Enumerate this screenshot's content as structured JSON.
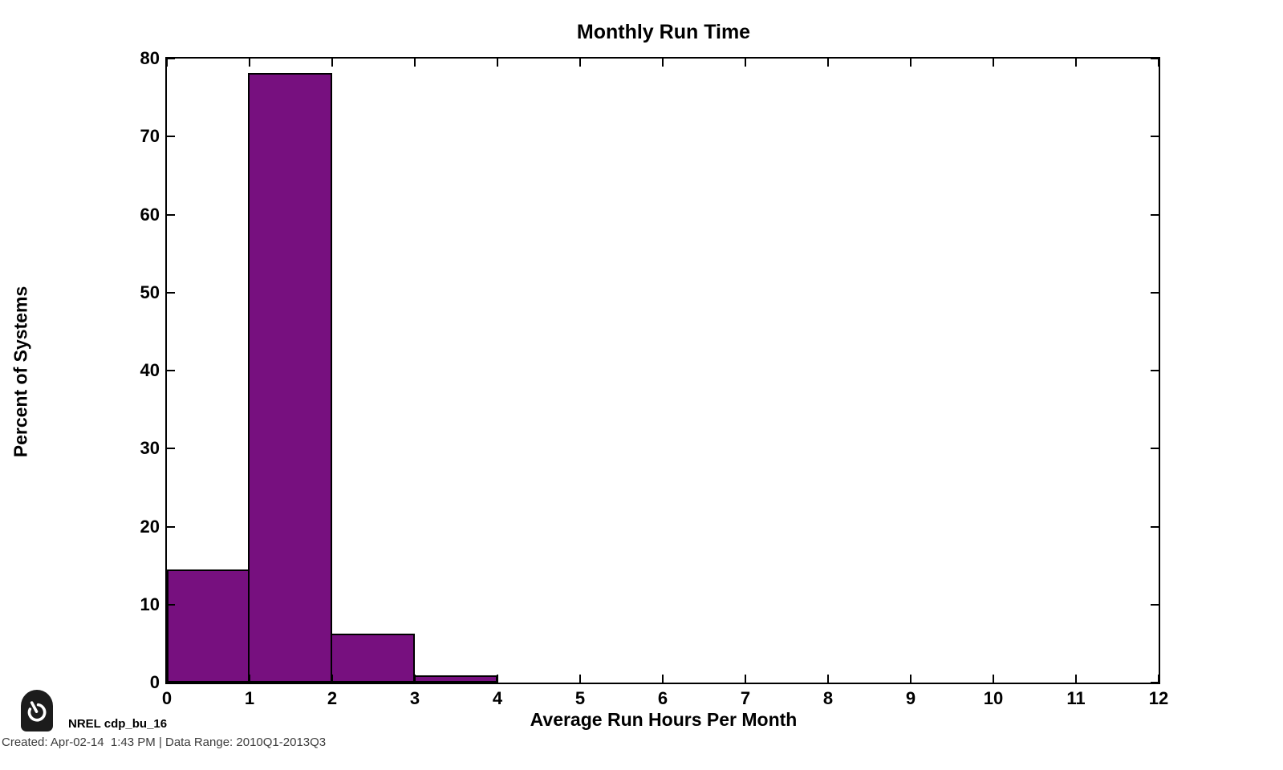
{
  "chart_data": {
    "type": "bar",
    "subtype": "histogram",
    "title": "Monthly Run Time",
    "xlabel": "Average Run Hours Per Month",
    "ylabel": "Percent of Systems",
    "categories": [
      "0-1",
      "1-2",
      "2-3",
      "3-4"
    ],
    "bins": [
      [
        0,
        1
      ],
      [
        1,
        2
      ],
      [
        2,
        3
      ],
      [
        3,
        4
      ]
    ],
    "values": [
      14.5,
      78.2,
      6.3,
      0.9
    ],
    "xlim": [
      0,
      12
    ],
    "ylim": [
      0,
      80
    ],
    "x_ticks": [
      0,
      1,
      2,
      3,
      4,
      5,
      6,
      7,
      8,
      9,
      10,
      11,
      12
    ],
    "y_ticks": [
      0,
      10,
      20,
      30,
      40,
      50,
      60,
      70,
      80
    ],
    "grid": false,
    "legend": null,
    "bar_color": "#77107F",
    "bar_edge_color": "#000000",
    "axis_color": "#000000"
  },
  "footer": {
    "logo_icon": "power-icon",
    "source_label": "NREL cdp_bu_16",
    "created_line": "Created: Apr-02-14  1:43 PM | Data Range: 2010Q1-2013Q3"
  }
}
